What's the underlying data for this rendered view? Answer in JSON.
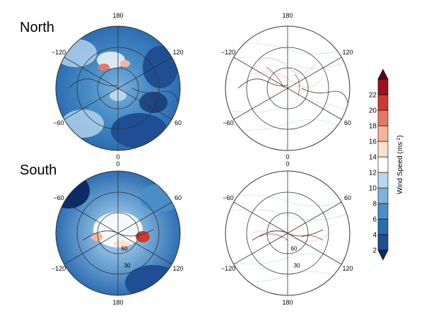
{
  "rows": [
    {
      "key": "north",
      "title": "North",
      "lon_labels": [
        "180",
        "120",
        "60",
        "0",
        "−60",
        "−120"
      ],
      "inner_labels": []
    },
    {
      "key": "south",
      "title": "South",
      "lon_labels": [
        "0",
        "60",
        "120",
        "180",
        "−120",
        "−60"
      ],
      "inner_labels": [
        "60",
        "30"
      ]
    }
  ],
  "colorbar": {
    "label": "Wind Speed (ms",
    "label_sup": "-1",
    "label_close": ")",
    "ticks": [
      "2",
      "4",
      "6",
      "8",
      "10",
      "12",
      "14",
      "16",
      "18",
      "20",
      "22"
    ],
    "colors": [
      "#1f4e95",
      "#2b6cb0",
      "#4a8ec8",
      "#7fb2dc",
      "#b8d7ef",
      "#ffffff",
      "#fde0d0",
      "#f7b49a",
      "#e8775e",
      "#cd3a32",
      "#9c1020"
    ],
    "low_color": "#0d2b66",
    "high_color": "#6b0010"
  }
}
